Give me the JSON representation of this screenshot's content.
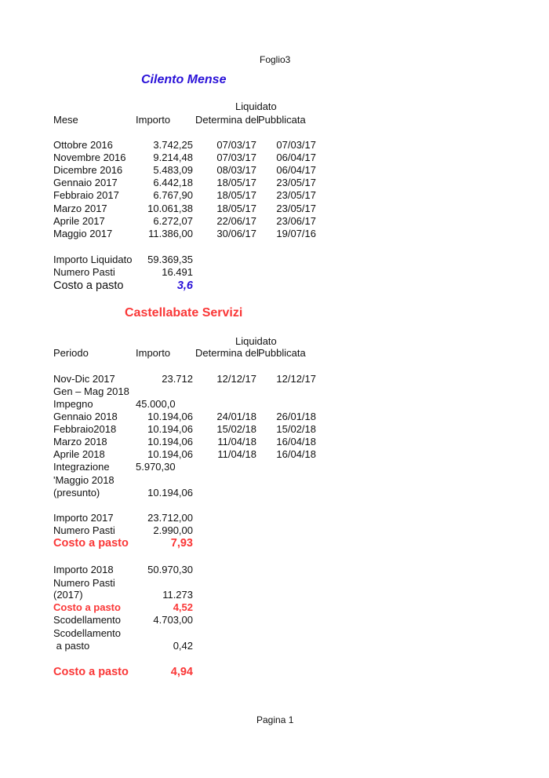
{
  "header": {
    "sheet": "Foglio3"
  },
  "footer": {
    "page": "Pagina 1"
  },
  "colors": {
    "cilento_accent": "#2a12d8",
    "castellabate_accent": "#fa3737"
  },
  "cilento": {
    "title": "Cilento Mense",
    "columns": {
      "group": "Liquidato",
      "mese": "Mese",
      "importo": "Importo",
      "determina": "Determina del",
      "pubblicata": "Pubblicata"
    },
    "rows": [
      {
        "mese": "Ottobre 2016",
        "importo": "3.742,25",
        "determina": "07/03/17",
        "pubblicata": "07/03/17"
      },
      {
        "mese": "Novembre 2016",
        "importo": "9.214,48",
        "determina": "07/03/17",
        "pubblicata": "06/04/17"
      },
      {
        "mese": "Dicembre 2016",
        "importo": "5.483,09",
        "determina": "08/03/17",
        "pubblicata": "06/04/17"
      },
      {
        "mese": "Gennaio 2017",
        "importo": "6.442,18",
        "determina": "18/05/17",
        "pubblicata": "23/05/17"
      },
      {
        "mese": "Febbraio 2017",
        "importo": "6.767,90",
        "determina": "18/05/17",
        "pubblicata": "23/05/17"
      },
      {
        "mese": "Marzo 2017",
        "importo": "10.061,38",
        "determina": "18/05/17",
        "pubblicata": "23/05/17"
      },
      {
        "mese": "Aprile 2017",
        "importo": "6.272,07",
        "determina": "22/06/17",
        "pubblicata": "23/06/17"
      },
      {
        "mese": "Maggio 2017",
        "importo": "11.386,00",
        "determina": "30/06/17",
        "pubblicata": "19/07/16"
      }
    ],
    "summary": {
      "importo_label": "Importo Liquidato",
      "importo_value": "59.369,35",
      "pasti_label": "Numero Pasti",
      "pasti_value": "16.491",
      "costo_label": "Costo a pasto",
      "costo_value": "3,6"
    }
  },
  "castellabate": {
    "title": "Castellabate Servizi",
    "columns": {
      "group": "Liquidato",
      "periodo": "Periodo",
      "importo": "Importo",
      "determina": "Determina del",
      "pubblicata": "Pubblicata"
    },
    "rows": [
      {
        "periodo": "Nov-Dic 2017",
        "importo": "23.712",
        "determina": "12/12/17",
        "pubblicata": "12/12/17"
      },
      {
        "periodo": "Gen – Mag 2018"
      },
      {
        "periodo": "Impegno",
        "importo": "45.000,0"
      },
      {
        "periodo": "Gennaio 2018",
        "importo": "10.194,06",
        "determina": "24/01/18",
        "pubblicata": "26/01/18"
      },
      {
        "periodo": "Febbraio2018",
        "importo": "10.194,06",
        "determina": "15/02/18",
        "pubblicata": "15/02/18"
      },
      {
        "periodo": "Marzo 2018",
        "importo": "10.194,06",
        "determina": "11/04/18",
        "pubblicata": "16/04/18"
      },
      {
        "periodo": "Aprile 2018",
        "importo": "10.194,06",
        "determina": "11/04/18",
        "pubblicata": "16/04/18"
      },
      {
        "periodo": "Integrazione",
        "importo": "5.970,30"
      },
      {
        "periodo": "'Maggio 2018"
      },
      {
        "periodo": "(presunto)",
        "importo": "10.194,06"
      }
    ],
    "summary_2017": {
      "importo_label": "Importo 2017",
      "importo_value": "23.712,00",
      "pasti_label": "Numero Pasti",
      "pasti_value": "2.990,00",
      "costo_label": "Costo a pasto",
      "costo_value": "7,93"
    },
    "summary_2018": {
      "importo_label": "Importo 2018",
      "importo_value": "50.970,30",
      "pasti_label_1": "Numero Pasti",
      "pasti_label_2": "(2017)",
      "pasti_value": "11.273",
      "costo_label": "Costo a pasto",
      "costo_value": "4,52",
      "scodellamento_label": "Scodellamento",
      "scodellamento_value": "4.703,00",
      "scod_pasto_label_1": "Scodellamento",
      "scod_pasto_label_2": " a pasto",
      "scod_pasto_value": "0,42",
      "totale_label": "Costo a pasto",
      "totale_value": "4,94"
    }
  }
}
